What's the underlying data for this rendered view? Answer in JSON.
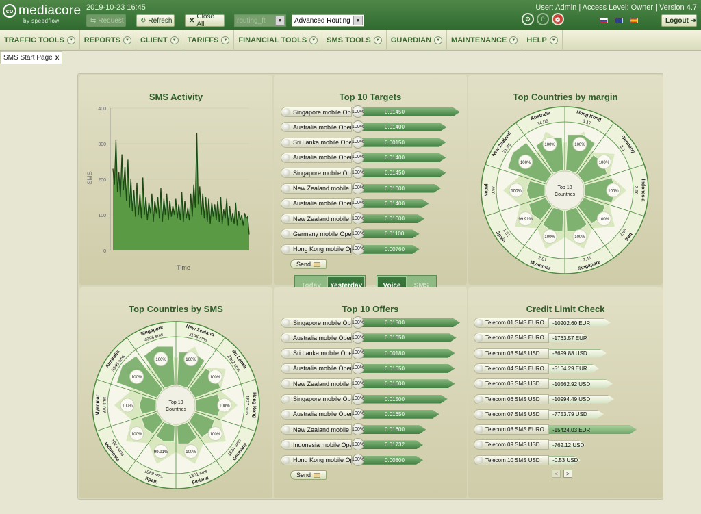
{
  "header": {
    "logo_name": "mediacore",
    "logo_sub": "by speedflow",
    "datetime": "2019-10-23 16:45",
    "request_label": "Request",
    "refresh_label": "Refresh",
    "close_all_label": "Close All",
    "routing_select_value": "routing_ft",
    "advanced_routing_value": "Advanced Routing",
    "user_info": "User: Admin | Access Level: Owner | Version 4.7",
    "logout_label": "Logout"
  },
  "menu": [
    "TRAFFIC TOOLS",
    "REPORTS",
    "CLIENT",
    "TARIFFS",
    "FINANCIAL TOOLS",
    "SMS TOOLS",
    "GUARDIAN",
    "MAINTENANCE",
    "HELP"
  ],
  "tab": {
    "label": "SMS Start Page",
    "close": "x"
  },
  "sms_activity": {
    "title": "SMS Activity",
    "ylabel": "SMS",
    "xlabel": "Time",
    "y_ticks": [
      "0",
      "100",
      "200",
      "300",
      "400"
    ]
  },
  "top_targets": {
    "title": "Top 10 Targets",
    "rows": [
      {
        "name": "Singapore mobile Ope...",
        "pct": "100%",
        "value": "0.01450",
        "fill": 1.0
      },
      {
        "name": "Australia mobile Opera...",
        "pct": "100%",
        "value": "0.01400",
        "fill": 0.82
      },
      {
        "name": "Sri Lanka mobile Oper...",
        "pct": "100%",
        "value": "0.00150",
        "fill": 0.81
      },
      {
        "name": "Australia mobile Opera...",
        "pct": "100%",
        "value": "0.01400",
        "fill": 0.81
      },
      {
        "name": "Singapore mobile Ope...",
        "pct": "100%",
        "value": "0.01450",
        "fill": 0.81
      },
      {
        "name": "New Zealand mobile O...",
        "pct": "100%",
        "value": "0.01000",
        "fill": 0.74
      },
      {
        "name": "Australia mobile Opera...",
        "pct": "100%",
        "value": "0.01400",
        "fill": 0.58
      },
      {
        "name": "New Zealand mobile O...",
        "pct": "100%",
        "value": "0.01000",
        "fill": 0.52
      },
      {
        "name": "Germany mobile Opera...",
        "pct": "100%",
        "value": "0.01100",
        "fill": 0.45
      },
      {
        "name": "Hong Kong mobile Op...",
        "pct": "100%",
        "value": "0.00760",
        "fill": 0.45
      }
    ],
    "send_label": "Send"
  },
  "top_offers": {
    "title": "Top 10 Offers",
    "rows": [
      {
        "name": "Singapore mobile Ope...",
        "pct": "100%",
        "value": "0.01500",
        "fill": 1.0
      },
      {
        "name": "Australia mobile Opera...",
        "pct": "100%",
        "value": "0.01650",
        "fill": 0.95
      },
      {
        "name": "Sri Lanka mobile Opera...",
        "pct": "100%",
        "value": "0.00180",
        "fill": 0.93
      },
      {
        "name": "Australia mobile Opera...",
        "pct": "100%",
        "value": "0.01650",
        "fill": 0.93
      },
      {
        "name": "New Zealand mobile Op...",
        "pct": "100%",
        "value": "0.01600",
        "fill": 0.93
      },
      {
        "name": "Singapore mobile Ope...",
        "pct": "100%",
        "value": "0.01500",
        "fill": 0.83
      },
      {
        "name": "Australia mobile Opera...",
        "pct": "100%",
        "value": "0.01650",
        "fill": 0.72
      },
      {
        "name": "New Zealand mobile Op...",
        "pct": "100%",
        "value": "0.01600",
        "fill": 0.54
      },
      {
        "name": "Indonesia mobile Oper...",
        "pct": "100%",
        "value": "0.01732",
        "fill": 0.5
      },
      {
        "name": "Hong Kong mobile Op...",
        "pct": "100%",
        "value": "0.00800",
        "fill": 0.5
      }
    ],
    "send_label": "Send"
  },
  "toggles": {
    "today": "Today",
    "yesterday": "Yesterday",
    "voice": "Voice",
    "sms": "SMS"
  },
  "countries_margin": {
    "title": "Top Countries by margin",
    "center": [
      "Top 10",
      "Countries"
    ],
    "segments": [
      {
        "country": "Hong Kong",
        "value": "3.17",
        "pct": "100%",
        "depth": 0.78
      },
      {
        "country": "Germany",
        "value": "3.1",
        "pct": "100%",
        "depth": 0.55
      },
      {
        "country": "Indonesia",
        "value": "2.66",
        "pct": "100%",
        "depth": 0.62
      },
      {
        "country": "Iraq",
        "value": "2.56",
        "pct": "100%",
        "depth": 0.5
      },
      {
        "country": "Singapore",
        "value": "2.41",
        "pct": "100%",
        "depth": 0.45
      },
      {
        "country": "Myanmar",
        "value": "2.01",
        "pct": "100%",
        "depth": 0.45
      },
      {
        "country": "Spain",
        "value": "1.82",
        "pct": "99.91%",
        "depth": 0.4
      },
      {
        "country": "Nepal",
        "value": "0.97",
        "pct": "100%",
        "depth": 0.35
      },
      {
        "country": "New Zealand",
        "value": "21.98",
        "pct": "100%",
        "depth": 0.9
      },
      {
        "country": "Australia",
        "value": "14.06",
        "pct": "100%",
        "depth": 0.72
      }
    ]
  },
  "countries_sms": {
    "title": "Top Countries by SMS",
    "center": [
      "Top 10",
      "Countries"
    ],
    "segments": [
      {
        "country": "New Zealand",
        "value": "3196 sms",
        "pct": "100%",
        "depth": 0.72
      },
      {
        "country": "Sri Lanka",
        "value": "2352 sms",
        "pct": "100%",
        "depth": 0.6
      },
      {
        "country": "Hong Kong",
        "value": "1827 sms",
        "pct": "100%",
        "depth": 0.5
      },
      {
        "country": "Germany",
        "value": "1624 sms",
        "pct": "100%",
        "depth": 0.46
      },
      {
        "country": "Finland",
        "value": "1301 sms",
        "pct": "100%",
        "depth": 0.4
      },
      {
        "country": "Spain",
        "value": "1089 sms",
        "pct": "99.91%",
        "depth": 0.36
      },
      {
        "country": "Indonesia",
        "value": "1064 sms",
        "pct": "100%",
        "depth": 0.36
      },
      {
        "country": "Myanmar",
        "value": "870 sms",
        "pct": "100%",
        "depth": 0.32
      },
      {
        "country": "Australia",
        "value": "5045 sms",
        "pct": "100%",
        "depth": 0.95
      },
      {
        "country": "Singapore",
        "value": "4396 sms",
        "pct": "100%",
        "depth": 0.85
      }
    ]
  },
  "credit": {
    "title": "Credit Limit Check",
    "rows": [
      {
        "name": "Telecom 01 SMS EURO",
        "value": "-10202.60 EUR",
        "fill": 0.62
      },
      {
        "name": "Telecom 02 SMS EURO",
        "value": "-1763.57 EUR",
        "fill": 0.3
      },
      {
        "name": "Telecom 03 SMS USD",
        "value": "-8699.88 USD",
        "fill": 0.56
      },
      {
        "name": "Telecom 04 SMS EURO",
        "value": "-5164.29 EUR",
        "fill": 0.45
      },
      {
        "name": "Telecom 05 SMS USD",
        "value": "-10562.92 USD",
        "fill": 0.65
      },
      {
        "name": "Telecom 06 SMS USD",
        "value": "-10994.49 USD",
        "fill": 0.67
      },
      {
        "name": "Telecom 07 SMS USD",
        "value": "-7753.79 USD",
        "fill": 0.52
      },
      {
        "name": "Telecom 08 SMS EURO",
        "value": "-15424.03 EUR",
        "fill": 1.0
      },
      {
        "name": "Telecom 09 SMS USD",
        "value": "-762.12 USD",
        "fill": 0.25
      },
      {
        "name": "Telecom 10 SMS USD",
        "value": "-0.53 USD",
        "fill": 0.18
      }
    ],
    "prev": "<",
    "next": ">"
  },
  "chart_data": {
    "type": "area",
    "title": "SMS Activity",
    "xlabel": "Time",
    "ylabel": "SMS",
    "ylim": [
      0,
      400
    ],
    "y_ticks": [
      0,
      100,
      200,
      300,
      400
    ],
    "values": [
      230,
      185,
      310,
      165,
      220,
      150,
      270,
      170,
      235,
      140,
      255,
      120,
      200,
      110,
      170,
      95,
      190,
      100,
      160,
      90,
      205,
      100,
      150,
      85,
      135,
      105,
      160,
      80,
      140,
      105,
      150,
      90,
      175,
      80,
      145,
      100,
      160,
      85,
      140,
      95,
      125,
      100,
      145,
      90,
      130,
      85,
      165,
      80,
      140,
      90,
      120,
      85,
      160,
      95,
      185,
      120,
      330,
      130,
      180,
      100,
      160,
      90,
      150,
      80,
      145,
      75,
      135,
      95,
      130,
      85,
      140,
      80,
      150,
      75,
      115,
      90,
      145,
      70,
      125,
      80,
      105,
      75,
      135,
      70,
      110,
      85,
      100,
      70,
      105,
      90,
      95,
      45
    ]
  }
}
